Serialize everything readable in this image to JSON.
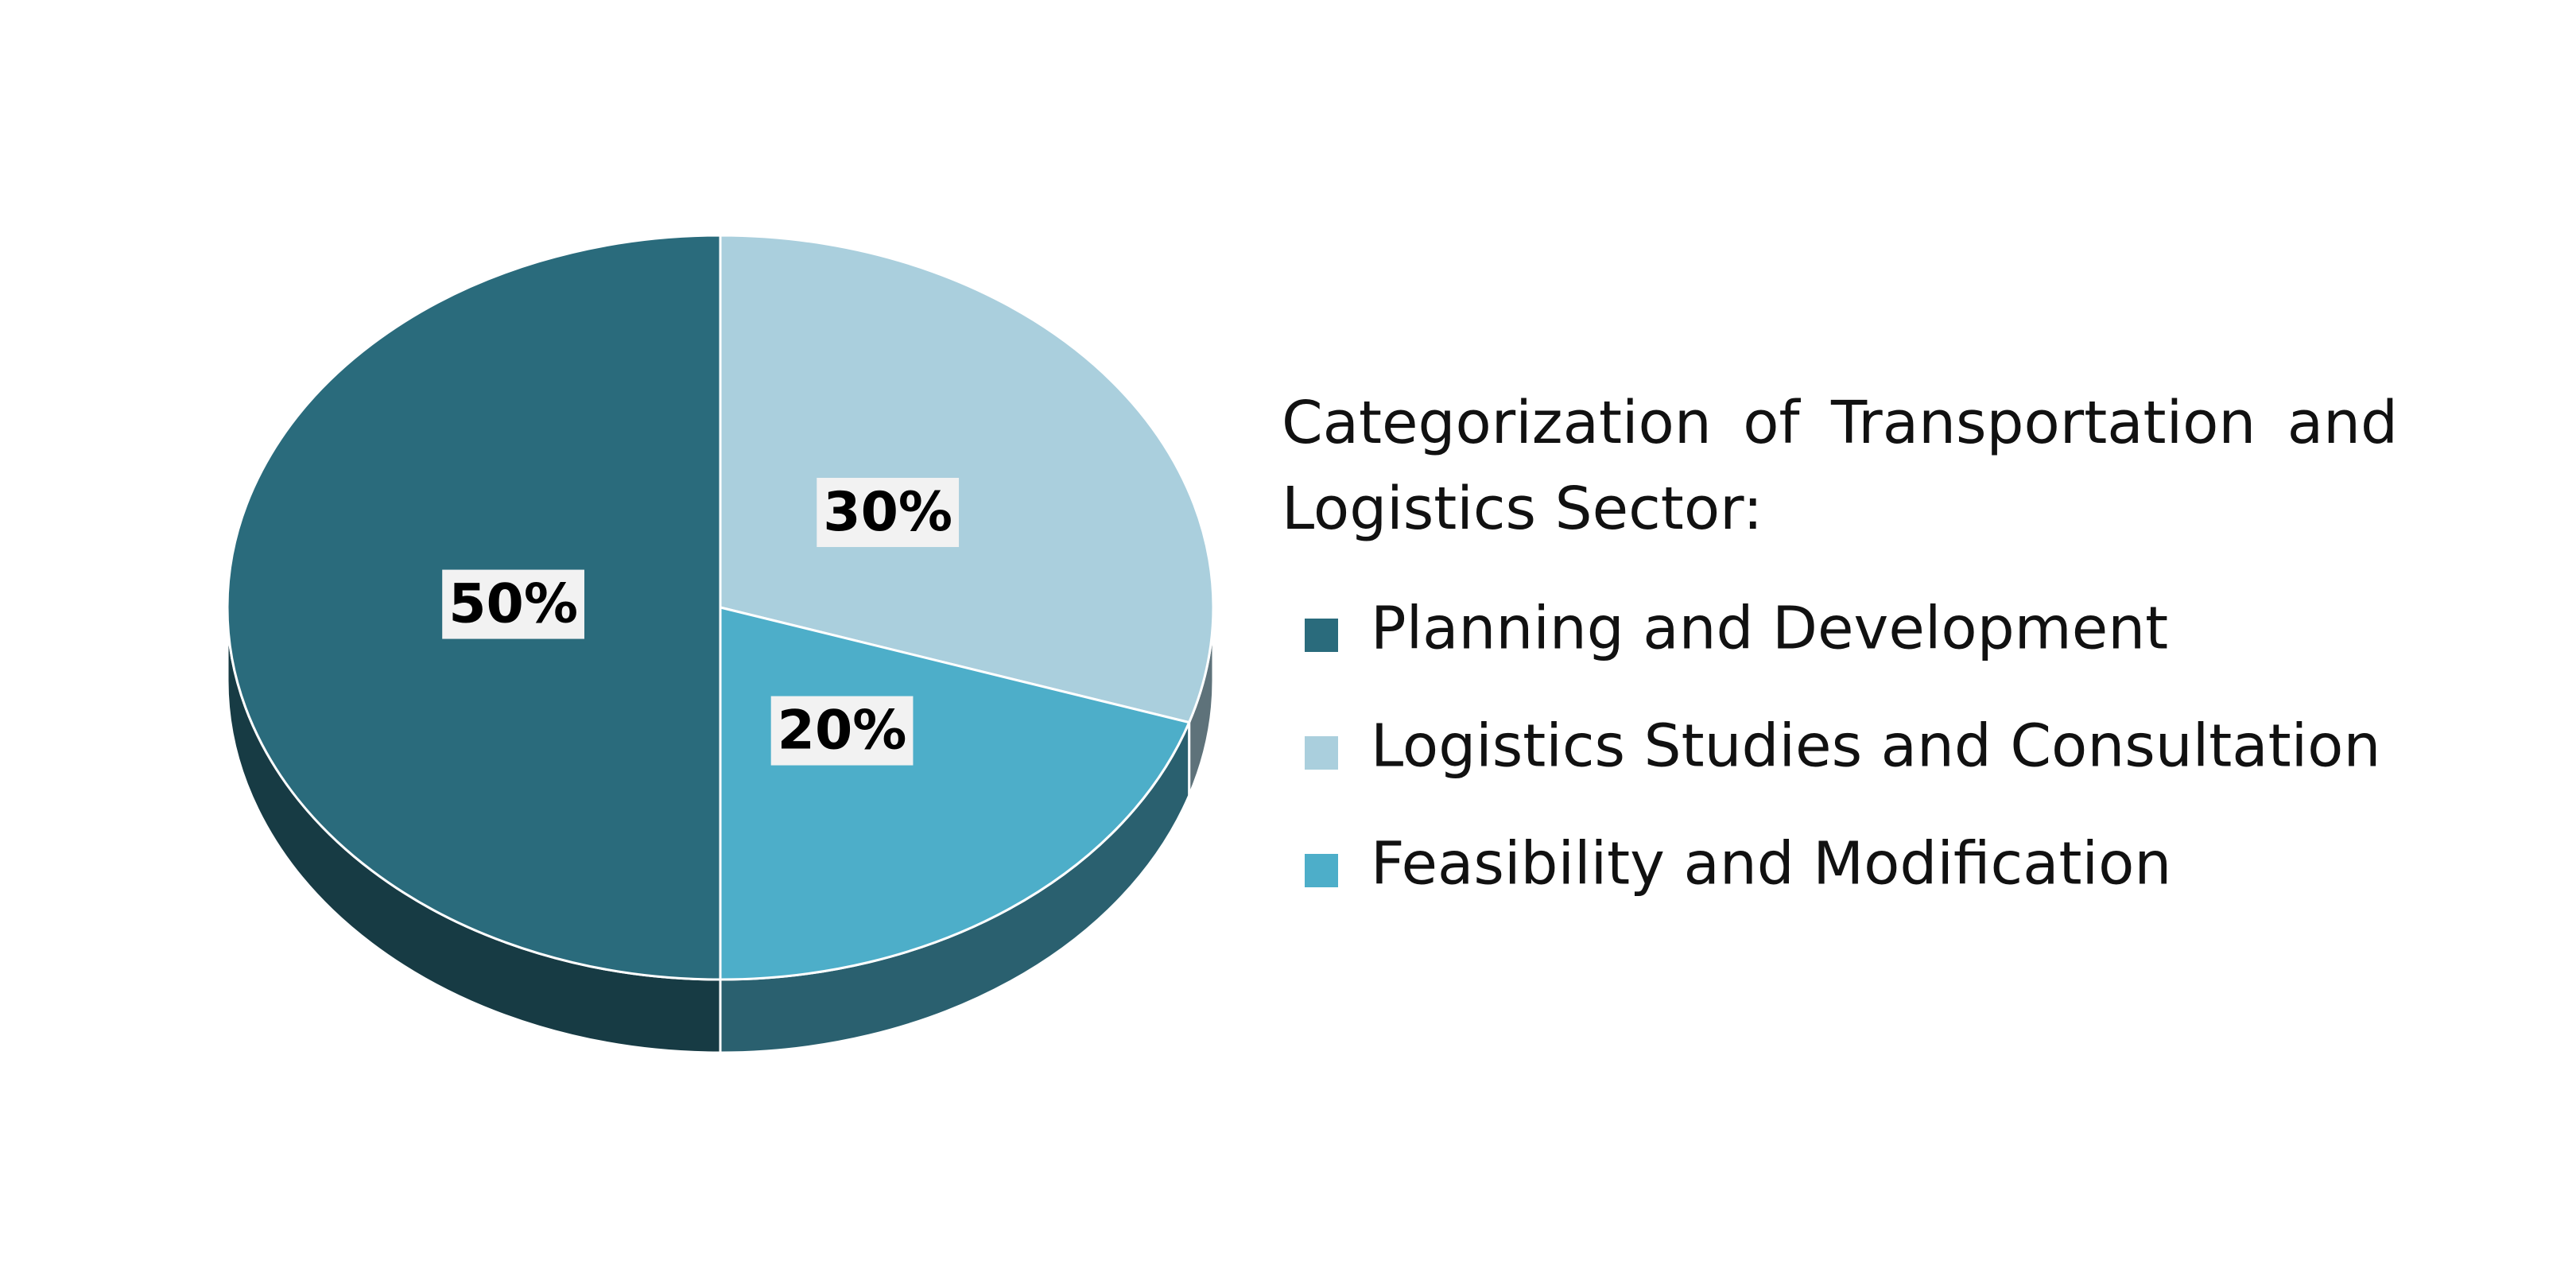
{
  "chart_data": {
    "type": "pie",
    "title": "Categorization of Transportation and Logistics Sector:",
    "categories": [
      "Planning and Development",
      "Logistics Studies and Consultation",
      "Feasibility and Modification"
    ],
    "values": [
      50,
      30,
      20
    ],
    "value_labels": [
      "50%",
      "30%",
      "20%"
    ],
    "colors": [
      "#2a6b7c",
      "#aacfdd",
      "#4daec9"
    ]
  }
}
